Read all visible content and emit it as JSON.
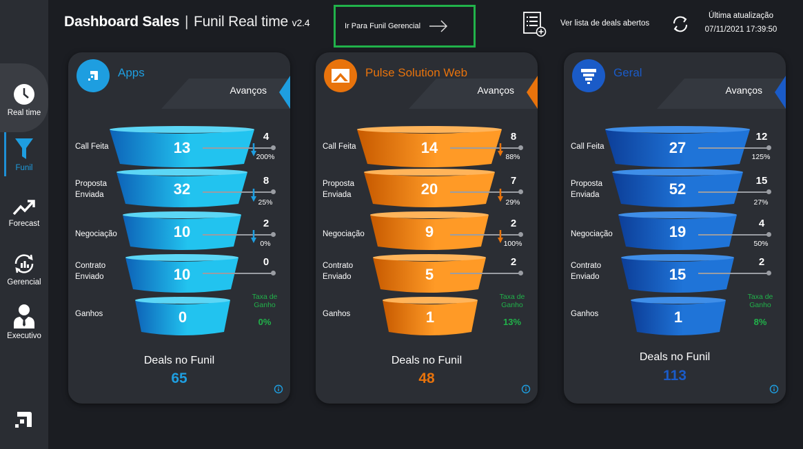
{
  "header": {
    "title_bold": "Dashboard Sales",
    "title_sep": "|",
    "title_light": "Funil Real time",
    "title_version": "v2.4",
    "goto_label": "Ir Para Funil Gerencial",
    "list_label": "Ver lista de deals abertos",
    "update_label": "Última atualização",
    "update_value": "07/11/2021 17:39:50"
  },
  "sidebar": {
    "items": [
      {
        "label": "Real time",
        "icon": "clock-icon"
      },
      {
        "label": "Funil",
        "icon": "funnel-icon"
      },
      {
        "label": "Forecast",
        "icon": "trend-up-icon"
      },
      {
        "label": "Gerencial",
        "icon": "chart-cycle-icon"
      },
      {
        "label": "Executivo",
        "icon": "person-icon"
      }
    ]
  },
  "common": {
    "avancos": "Avanços",
    "stages": [
      "Call Feita",
      "Proposta Enviada",
      "Negociação",
      "Contrato Enviado",
      "Ganhos"
    ],
    "taxa_label": "Taxa de Ganho",
    "deals_label": "Deals no Funil"
  },
  "colors": {
    "apps": "#1e9ee0",
    "pulse": "#e8730c",
    "geral": "#1a5bc8",
    "green": "#21b24a"
  },
  "cards": [
    {
      "name": "Apps",
      "values": [
        "13",
        "32",
        "10",
        "10",
        "0"
      ],
      "advances": [
        "4",
        "8",
        "2",
        "0"
      ],
      "pcts": [
        "200%",
        "25%",
        "0%"
      ],
      "taxa": "0%",
      "deals": "65"
    },
    {
      "name": "Pulse Solution Web",
      "values": [
        "14",
        "20",
        "9",
        "5",
        "1"
      ],
      "advances": [
        "8",
        "7",
        "2",
        "2"
      ],
      "pcts": [
        "88%",
        "29%",
        "100%"
      ],
      "taxa": "13%",
      "deals": "48"
    },
    {
      "name": "Geral",
      "values": [
        "27",
        "52",
        "19",
        "15",
        "1"
      ],
      "advances": [
        "12",
        "15",
        "4",
        "2"
      ],
      "pcts": [
        "125%",
        "27%",
        "50%"
      ],
      "taxa": "8%",
      "deals": "113"
    }
  ]
}
